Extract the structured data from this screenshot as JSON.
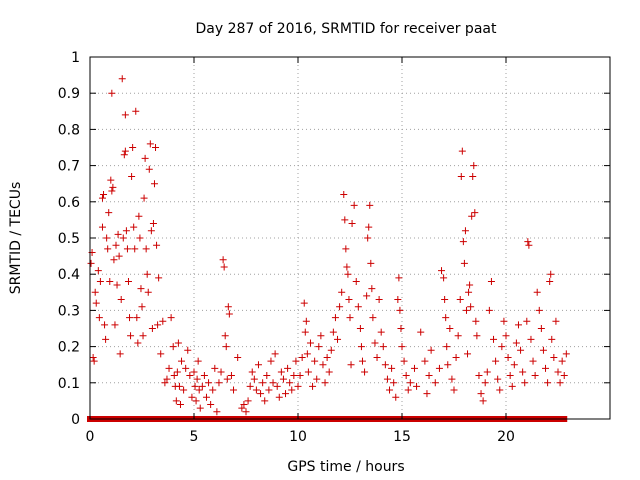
{
  "chart_data": {
    "type": "scatter",
    "title": "Day 287 of 2016, SRMTID for receiver paat",
    "xlabel": "GPS time / hours",
    "ylabel": "SRMTID / TECUs",
    "xlim": [
      0,
      25
    ],
    "ylim": [
      0,
      1
    ],
    "x_ticks": [
      0,
      5,
      10,
      15,
      20
    ],
    "x_tick_labels": [
      "0",
      "5",
      "10",
      "15",
      "20"
    ],
    "y_ticks": [
      0,
      0.1,
      0.2,
      0.3,
      0.4,
      0.5,
      0.6,
      0.7,
      0.8,
      0.9,
      1
    ],
    "y_tick_labels": [
      "0",
      "0.1",
      "0.2",
      "0.3",
      "0.4",
      "0.5",
      "0.6",
      "0.7",
      "0.8",
      "0.9",
      "1"
    ],
    "grid": true,
    "marker": "+",
    "series": [
      {
        "name": "SRMTID",
        "color": "#cc0000",
        "points": [
          [
            0.05,
            0.43
          ],
          [
            0.1,
            0.46
          ],
          [
            0.15,
            0.17
          ],
          [
            0.2,
            0.16
          ],
          [
            0.25,
            0.35
          ],
          [
            0.3,
            0.32
          ],
          [
            0.4,
            0.41
          ],
          [
            0.45,
            0.28
          ],
          [
            0.5,
            0.38
          ],
          [
            0.6,
            0.61
          ],
          [
            0.6,
            0.53
          ],
          [
            0.65,
            0.62
          ],
          [
            0.7,
            0.26
          ],
          [
            0.75,
            0.22
          ],
          [
            0.8,
            0.5
          ],
          [
            0.85,
            0.47
          ],
          [
            0.9,
            0.57
          ],
          [
            0.95,
            0.38
          ],
          [
            1.0,
            0.66
          ],
          [
            1.05,
            0.63
          ],
          [
            1.05,
            0.9
          ],
          [
            1.1,
            0.64
          ],
          [
            1.15,
            0.44
          ],
          [
            1.2,
            0.26
          ],
          [
            1.25,
            0.48
          ],
          [
            1.3,
            0.37
          ],
          [
            1.35,
            0.51
          ],
          [
            1.4,
            0.45
          ],
          [
            1.45,
            0.18
          ],
          [
            1.5,
            0.33
          ],
          [
            1.55,
            0.94
          ],
          [
            1.6,
            0.5
          ],
          [
            1.65,
            0.73
          ],
          [
            1.7,
            0.84
          ],
          [
            1.7,
            0.74
          ],
          [
            1.75,
            0.52
          ],
          [
            1.8,
            0.47
          ],
          [
            1.85,
            0.38
          ],
          [
            1.9,
            0.28
          ],
          [
            1.95,
            0.23
          ],
          [
            2.0,
            0.67
          ],
          [
            2.05,
            0.75
          ],
          [
            2.1,
            0.53
          ],
          [
            2.15,
            0.47
          ],
          [
            2.2,
            0.85
          ],
          [
            2.25,
            0.28
          ],
          [
            2.3,
            0.21
          ],
          [
            2.35,
            0.56
          ],
          [
            2.4,
            0.5
          ],
          [
            2.45,
            0.36
          ],
          [
            2.5,
            0.31
          ],
          [
            2.55,
            0.23
          ],
          [
            2.6,
            0.61
          ],
          [
            2.65,
            0.72
          ],
          [
            2.7,
            0.47
          ],
          [
            2.75,
            0.4
          ],
          [
            2.8,
            0.35
          ],
          [
            2.85,
            0.69
          ],
          [
            2.9,
            0.76
          ],
          [
            2.95,
            0.52
          ],
          [
            3.0,
            0.25
          ],
          [
            3.05,
            0.54
          ],
          [
            3.1,
            0.65
          ],
          [
            3.15,
            0.75
          ],
          [
            3.2,
            0.48
          ],
          [
            3.25,
            0.26
          ],
          [
            3.3,
            0.39
          ],
          [
            3.4,
            0.18
          ],
          [
            3.5,
            0.27
          ],
          [
            3.6,
            0.1
          ],
          [
            3.7,
            0.11
          ],
          [
            3.8,
            0.14
          ],
          [
            3.9,
            0.28
          ],
          [
            4.0,
            0.2
          ],
          [
            4.05,
            0.12
          ],
          [
            4.1,
            0.09
          ],
          [
            4.15,
            0.05
          ],
          [
            4.2,
            0.13
          ],
          [
            4.25,
            0.21
          ],
          [
            4.3,
            0.09
          ],
          [
            4.35,
            0.04
          ],
          [
            4.4,
            0.16
          ],
          [
            4.5,
            0.08
          ],
          [
            4.6,
            0.14
          ],
          [
            4.7,
            0.19
          ],
          [
            4.8,
            0.12
          ],
          [
            4.9,
            0.06
          ],
          [
            5.0,
            0.13
          ],
          [
            5.05,
            0.09
          ],
          [
            5.1,
            0.05
          ],
          [
            5.15,
            0.11
          ],
          [
            5.2,
            0.16
          ],
          [
            5.25,
            0.08
          ],
          [
            5.3,
            0.03
          ],
          [
            5.4,
            0.09
          ],
          [
            5.5,
            0.12
          ],
          [
            5.6,
            0.06
          ],
          [
            5.7,
            0.1
          ],
          [
            5.8,
            0.04
          ],
          [
            5.9,
            0.08
          ],
          [
            6.0,
            0.14
          ],
          [
            6.1,
            0.02
          ],
          [
            6.2,
            0.1
          ],
          [
            6.3,
            0.13
          ],
          [
            6.4,
            0.44
          ],
          [
            6.45,
            0.42
          ],
          [
            6.5,
            0.23
          ],
          [
            6.55,
            0.2
          ],
          [
            6.6,
            0.11
          ],
          [
            6.65,
            0.31
          ],
          [
            6.7,
            0.29
          ],
          [
            6.8,
            0.12
          ],
          [
            6.9,
            0.08
          ],
          [
            7.1,
            0.17
          ],
          [
            7.3,
            0.03
          ],
          [
            7.4,
            0.04
          ],
          [
            7.5,
            0.02
          ],
          [
            7.6,
            0.05
          ],
          [
            7.7,
            0.09
          ],
          [
            7.8,
            0.13
          ],
          [
            7.9,
            0.11
          ],
          [
            8.0,
            0.08
          ],
          [
            8.1,
            0.15
          ],
          [
            8.2,
            0.07
          ],
          [
            8.3,
            0.1
          ],
          [
            8.4,
            0.05
          ],
          [
            8.5,
            0.12
          ],
          [
            8.6,
            0.08
          ],
          [
            8.7,
            0.16
          ],
          [
            8.8,
            0.1
          ],
          [
            8.9,
            0.18
          ],
          [
            9.0,
            0.09
          ],
          [
            9.1,
            0.06
          ],
          [
            9.2,
            0.13
          ],
          [
            9.3,
            0.11
          ],
          [
            9.4,
            0.07
          ],
          [
            9.5,
            0.14
          ],
          [
            9.6,
            0.1
          ],
          [
            9.7,
            0.08
          ],
          [
            9.8,
            0.12
          ],
          [
            9.9,
            0.16
          ],
          [
            10.0,
            0.09
          ],
          [
            10.1,
            0.12
          ],
          [
            10.2,
            0.17
          ],
          [
            10.3,
            0.32
          ],
          [
            10.35,
            0.24
          ],
          [
            10.4,
            0.27
          ],
          [
            10.45,
            0.18
          ],
          [
            10.5,
            0.13
          ],
          [
            10.6,
            0.21
          ],
          [
            10.7,
            0.09
          ],
          [
            10.8,
            0.16
          ],
          [
            10.9,
            0.11
          ],
          [
            11.0,
            0.2
          ],
          [
            11.1,
            0.23
          ],
          [
            11.2,
            0.15
          ],
          [
            11.3,
            0.1
          ],
          [
            11.4,
            0.17
          ],
          [
            11.5,
            0.13
          ],
          [
            11.6,
            0.19
          ],
          [
            11.7,
            0.24
          ],
          [
            11.8,
            0.28
          ],
          [
            11.9,
            0.22
          ],
          [
            12.0,
            0.31
          ],
          [
            12.1,
            0.35
          ],
          [
            12.2,
            0.62
          ],
          [
            12.25,
            0.55
          ],
          [
            12.3,
            0.47
          ],
          [
            12.35,
            0.42
          ],
          [
            12.4,
            0.4
          ],
          [
            12.45,
            0.33
          ],
          [
            12.5,
            0.28
          ],
          [
            12.55,
            0.15
          ],
          [
            12.6,
            0.54
          ],
          [
            12.7,
            0.59
          ],
          [
            12.8,
            0.38
          ],
          [
            12.9,
            0.31
          ],
          [
            13.0,
            0.25
          ],
          [
            13.05,
            0.2
          ],
          [
            13.1,
            0.16
          ],
          [
            13.2,
            0.13
          ],
          [
            13.3,
            0.34
          ],
          [
            13.35,
            0.5
          ],
          [
            13.4,
            0.53
          ],
          [
            13.45,
            0.59
          ],
          [
            13.5,
            0.43
          ],
          [
            13.55,
            0.36
          ],
          [
            13.6,
            0.28
          ],
          [
            13.7,
            0.21
          ],
          [
            13.8,
            0.17
          ],
          [
            13.9,
            0.33
          ],
          [
            14.0,
            0.24
          ],
          [
            14.1,
            0.2
          ],
          [
            14.2,
            0.15
          ],
          [
            14.3,
            0.11
          ],
          [
            14.4,
            0.08
          ],
          [
            14.5,
            0.14
          ],
          [
            14.6,
            0.1
          ],
          [
            14.7,
            0.06
          ],
          [
            14.8,
            0.33
          ],
          [
            14.85,
            0.39
          ],
          [
            14.9,
            0.3
          ],
          [
            14.95,
            0.25
          ],
          [
            15.0,
            0.2
          ],
          [
            15.1,
            0.16
          ],
          [
            15.2,
            0.12
          ],
          [
            15.3,
            0.08
          ],
          [
            15.4,
            0.1
          ],
          [
            15.6,
            0.14
          ],
          [
            15.7,
            0.09
          ],
          [
            15.9,
            0.24
          ],
          [
            16.1,
            0.16
          ],
          [
            16.2,
            0.07
          ],
          [
            16.3,
            0.12
          ],
          [
            16.4,
            0.19
          ],
          [
            16.6,
            0.1
          ],
          [
            16.8,
            0.14
          ],
          [
            16.9,
            0.41
          ],
          [
            17.0,
            0.39
          ],
          [
            17.05,
            0.33
          ],
          [
            17.1,
            0.28
          ],
          [
            17.15,
            0.2
          ],
          [
            17.2,
            0.15
          ],
          [
            17.3,
            0.25
          ],
          [
            17.4,
            0.11
          ],
          [
            17.5,
            0.08
          ],
          [
            17.6,
            0.17
          ],
          [
            17.7,
            0.23
          ],
          [
            17.8,
            0.33
          ],
          [
            17.85,
            0.67
          ],
          [
            17.9,
            0.74
          ],
          [
            17.95,
            0.49
          ],
          [
            18.0,
            0.43
          ],
          [
            18.05,
            0.52
          ],
          [
            18.1,
            0.3
          ],
          [
            18.15,
            0.18
          ],
          [
            18.2,
            0.35
          ],
          [
            18.25,
            0.37
          ],
          [
            18.3,
            0.31
          ],
          [
            18.35,
            0.56
          ],
          [
            18.4,
            0.67
          ],
          [
            18.45,
            0.7
          ],
          [
            18.5,
            0.57
          ],
          [
            18.55,
            0.27
          ],
          [
            18.6,
            0.23
          ],
          [
            18.7,
            0.12
          ],
          [
            18.8,
            0.07
          ],
          [
            18.9,
            0.05
          ],
          [
            19.0,
            0.1
          ],
          [
            19.1,
            0.13
          ],
          [
            19.2,
            0.3
          ],
          [
            19.3,
            0.38
          ],
          [
            19.4,
            0.22
          ],
          [
            19.5,
            0.16
          ],
          [
            19.6,
            0.11
          ],
          [
            19.7,
            0.08
          ],
          [
            19.8,
            0.2
          ],
          [
            19.9,
            0.27
          ],
          [
            20.0,
            0.23
          ],
          [
            20.1,
            0.17
          ],
          [
            20.2,
            0.12
          ],
          [
            20.3,
            0.09
          ],
          [
            20.4,
            0.15
          ],
          [
            20.5,
            0.21
          ],
          [
            20.6,
            0.26
          ],
          [
            20.7,
            0.19
          ],
          [
            20.8,
            0.13
          ],
          [
            20.9,
            0.1
          ],
          [
            21.0,
            0.27
          ],
          [
            21.05,
            0.49
          ],
          [
            21.1,
            0.48
          ],
          [
            21.2,
            0.22
          ],
          [
            21.3,
            0.16
          ],
          [
            21.4,
            0.12
          ],
          [
            21.5,
            0.35
          ],
          [
            21.6,
            0.3
          ],
          [
            21.7,
            0.25
          ],
          [
            21.8,
            0.19
          ],
          [
            21.9,
            0.14
          ],
          [
            22.0,
            0.1
          ],
          [
            22.1,
            0.38
          ],
          [
            22.15,
            0.4
          ],
          [
            22.2,
            0.22
          ],
          [
            22.3,
            0.17
          ],
          [
            22.4,
            0.27
          ],
          [
            22.5,
            0.13
          ],
          [
            22.6,
            0.1
          ],
          [
            22.7,
            0.16
          ],
          [
            22.8,
            0.12
          ],
          [
            22.9,
            0.18
          ]
        ],
        "zero_band": {
          "x_start": 0.0,
          "x_end": 22.8,
          "y": 0
        }
      }
    ]
  }
}
